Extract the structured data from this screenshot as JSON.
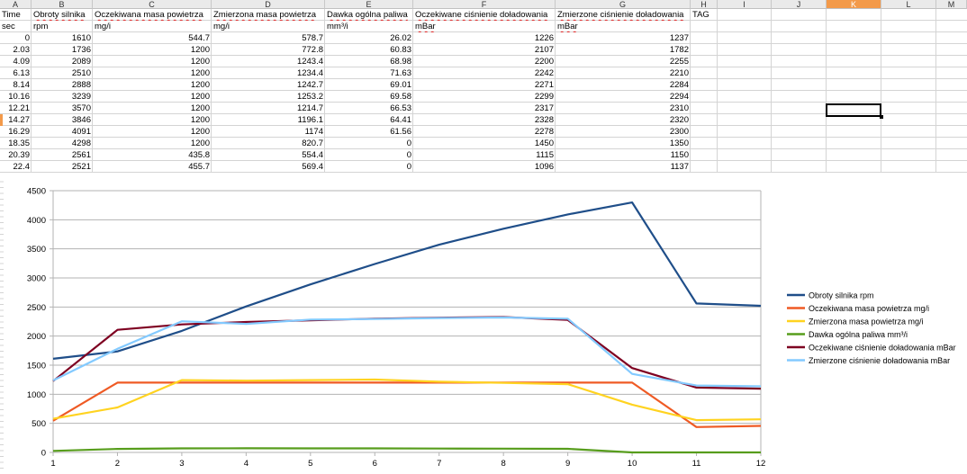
{
  "columns": [
    "A",
    "B",
    "C",
    "D",
    "E",
    "F",
    "G",
    "H",
    "I",
    "J",
    "K",
    "L",
    "M"
  ],
  "active_column": "K",
  "header_row": [
    "Time",
    "Obroty silnika",
    "Oczekiwana masa powietrza",
    "Zmierzona masa powietrza",
    "Dawka ogólna paliwa",
    "Oczekiwane ciśnienie doładowania",
    "Zmierzone ciśnienie doładowania",
    "TAG"
  ],
  "unit_row": [
    "sec",
    "rpm",
    "mg/i",
    "mg/i",
    "mm³/i",
    "mBar",
    "mBar",
    ""
  ],
  "data_rows": [
    [
      "0",
      "1610",
      "544.7",
      "578.7",
      "26.02",
      "1226",
      "1237"
    ],
    [
      "2.03",
      "1736",
      "1200",
      "772.8",
      "60.83",
      "2107",
      "1782"
    ],
    [
      "4.09",
      "2089",
      "1200",
      "1243.4",
      "68.98",
      "2200",
      "2255"
    ],
    [
      "6.13",
      "2510",
      "1200",
      "1234.4",
      "71.63",
      "2242",
      "2210"
    ],
    [
      "8.14",
      "2888",
      "1200",
      "1242.7",
      "69.01",
      "2271",
      "2284"
    ],
    [
      "10.16",
      "3239",
      "1200",
      "1253.2",
      "69.58",
      "2299",
      "2294"
    ],
    [
      "12.21",
      "3570",
      "1200",
      "1214.7",
      "66.53",
      "2317",
      "2310"
    ],
    [
      "14.27",
      "3846",
      "1200",
      "1196.1",
      "64.41",
      "2328",
      "2320"
    ],
    [
      "16.29",
      "4091",
      "1200",
      "1174",
      "61.56",
      "2278",
      "2300"
    ],
    [
      "18.35",
      "4298",
      "1200",
      "820.7",
      "0",
      "1450",
      "1350"
    ],
    [
      "20.39",
      "2561",
      "435.8",
      "554.4",
      "0",
      "1115",
      "1150"
    ],
    [
      "22.4",
      "2521",
      "455.7",
      "569.4",
      "0",
      "1096",
      "1137"
    ]
  ],
  "chart_data": {
    "type": "line",
    "x": [
      1,
      2,
      3,
      4,
      5,
      6,
      7,
      8,
      9,
      10,
      11,
      12
    ],
    "ylim": [
      0,
      4500
    ],
    "yticks": [
      "0",
      "500",
      "1000",
      "1500",
      "2000",
      "2500",
      "3000",
      "3500",
      "4000",
      "4500"
    ],
    "xticks": [
      "1",
      "2",
      "3",
      "4",
      "5",
      "6",
      "7",
      "8",
      "9",
      "10",
      "11",
      "12"
    ],
    "grid": true,
    "legend": "right",
    "series": [
      {
        "name": "Obroty silnika rpm",
        "color": "#1f4e89",
        "values": [
          1610,
          1736,
          2089,
          2510,
          2888,
          3239,
          3570,
          3846,
          4091,
          4298,
          2561,
          2521
        ]
      },
      {
        "name": "Oczekiwana masa powietrza mg/i",
        "color": "#ef5a24",
        "values": [
          544.7,
          1200,
          1200,
          1200,
          1200,
          1200,
          1200,
          1200,
          1200,
          1200,
          435.8,
          455.7
        ]
      },
      {
        "name": "Zmierzona masa powietrza mg/i",
        "color": "#ffd320",
        "values": [
          578.7,
          772.8,
          1243.4,
          1234.4,
          1242.7,
          1253.2,
          1214.7,
          1196.1,
          1174,
          820.7,
          554.4,
          569.4
        ]
      },
      {
        "name": "Dawka ogólna paliwa mm³/i",
        "color": "#579d1c",
        "values": [
          26.02,
          60.83,
          68.98,
          71.63,
          69.01,
          69.58,
          66.53,
          64.41,
          61.56,
          0,
          0,
          0
        ]
      },
      {
        "name": "Oczekiwane ciśnienie doładowania mBar",
        "color": "#7e0021",
        "values": [
          1226,
          2107,
          2200,
          2242,
          2271,
          2299,
          2317,
          2328,
          2278,
          1450,
          1115,
          1096
        ]
      },
      {
        "name": "Zmierzone ciśnienie doładowania mBar",
        "color": "#83caff",
        "values": [
          1237,
          1782,
          2255,
          2210,
          2284,
          2294,
          2310,
          2320,
          2300,
          1350,
          1150,
          1137
        ]
      }
    ]
  }
}
